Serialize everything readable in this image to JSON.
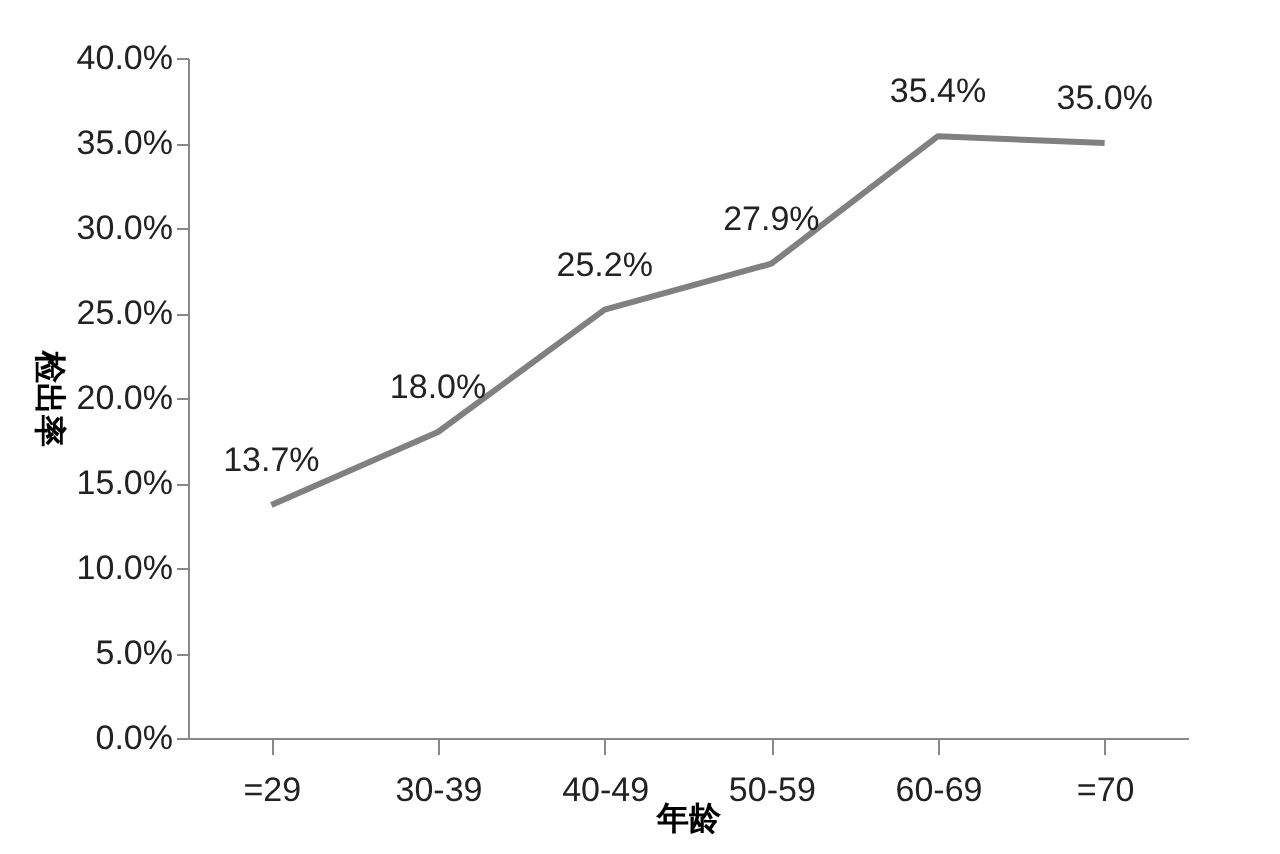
{
  "chart_data": {
    "type": "line",
    "xlabel": "年龄",
    "ylabel": "检出率",
    "categories": [
      "=29",
      "30-39",
      "40-49",
      "50-59",
      "60-69",
      "=70"
    ],
    "series": [
      {
        "color": "#808080",
        "values": [
          13.7,
          18.0,
          25.2,
          27.9,
          35.4,
          35.0
        ],
        "value_labels": [
          "13.7%",
          "18.0%",
          "25.2%",
          "27.9%",
          "35.4%",
          "35.0%"
        ]
      }
    ],
    "ylim": [
      0,
      40
    ],
    "yticks": [
      {
        "value": 0,
        "label": "0.0%"
      },
      {
        "value": 5,
        "label": "5.0%"
      },
      {
        "value": 10,
        "label": "10.0%"
      },
      {
        "value": 15,
        "label": "15.0%"
      },
      {
        "value": 20,
        "label": "20.0%"
      },
      {
        "value": 25,
        "label": "25.0%"
      },
      {
        "value": 30,
        "label": "30.0%"
      },
      {
        "value": 35,
        "label": "35.0%"
      },
      {
        "value": 40,
        "label": "40.0%"
      }
    ],
    "grid": false,
    "legend": false,
    "marker": "none",
    "line_style": "solid"
  }
}
